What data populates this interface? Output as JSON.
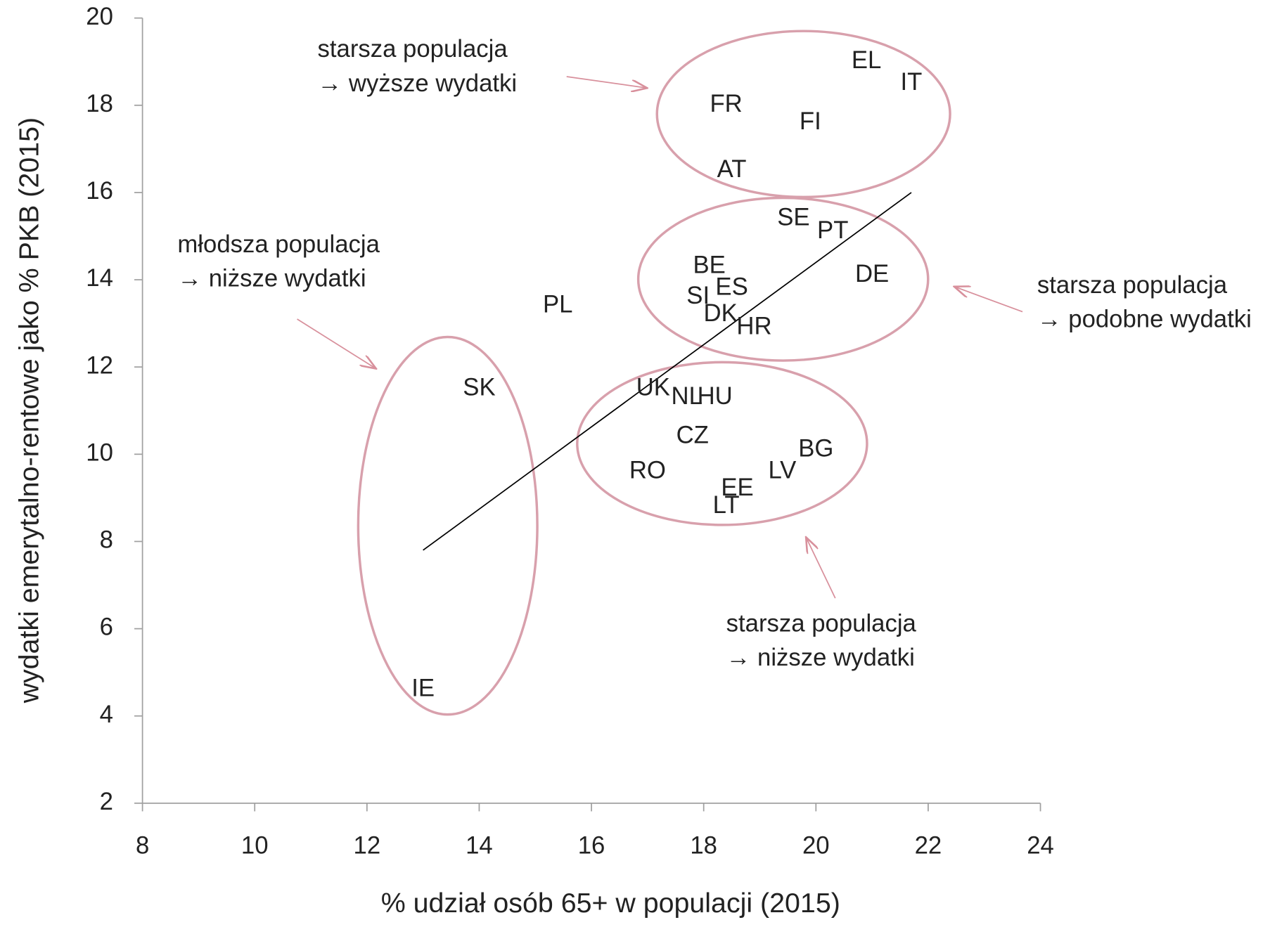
{
  "chart_data": {
    "type": "scatter",
    "xlabel": "% udział osób 65+ w populacji (2015)",
    "ylabel": "wydatki emerytalno-rentowe jako % PKB (2015)",
    "categories": [
      "EL",
      "IT",
      "FR",
      "FI",
      "AT",
      "SE",
      "PT",
      "BE",
      "ES",
      "DE",
      "SI",
      "DK",
      "HR",
      "PL",
      "SK",
      "UK",
      "NL",
      "HU",
      "CZ",
      "BG",
      "RO",
      "LV",
      "EE",
      "LT",
      "IE"
    ],
    "x": [
      20.9,
      21.7,
      18.4,
      19.9,
      18.5,
      19.6,
      20.3,
      18.1,
      18.5,
      21.0,
      17.9,
      18.3,
      18.9,
      15.4,
      14.0,
      17.1,
      17.7,
      18.2,
      17.8,
      20.0,
      17.0,
      19.4,
      18.6,
      18.4,
      13.0
    ],
    "values": [
      19.0,
      18.5,
      18.0,
      17.6,
      16.5,
      15.4,
      15.1,
      14.3,
      13.8,
      14.1,
      13.6,
      13.2,
      12.9,
      13.4,
      11.5,
      11.5,
      11.3,
      11.3,
      10.4,
      10.1,
      9.6,
      9.6,
      9.2,
      8.8,
      4.6
    ],
    "trendline": {
      "x": [
        13.0,
        21.7
      ],
      "y": [
        7.8,
        16.0
      ]
    },
    "xlim": [
      8,
      24
    ],
    "xticks": [
      8,
      10,
      12,
      14,
      16,
      18,
      20,
      22,
      24
    ],
    "ylim": [
      2,
      20
    ],
    "yticks": [
      2,
      4,
      6,
      8,
      10,
      12,
      14,
      16,
      18,
      20
    ],
    "annotations": [
      [
        "starsza populacja",
        "→ wyższe wydatki"
      ],
      [
        "młodsza populacja",
        "→ niższe wydatki"
      ],
      [
        "starsza populacja",
        "→ podobne wydatki"
      ],
      [
        "starsza populacja",
        "→ niższe wydatki"
      ]
    ]
  }
}
